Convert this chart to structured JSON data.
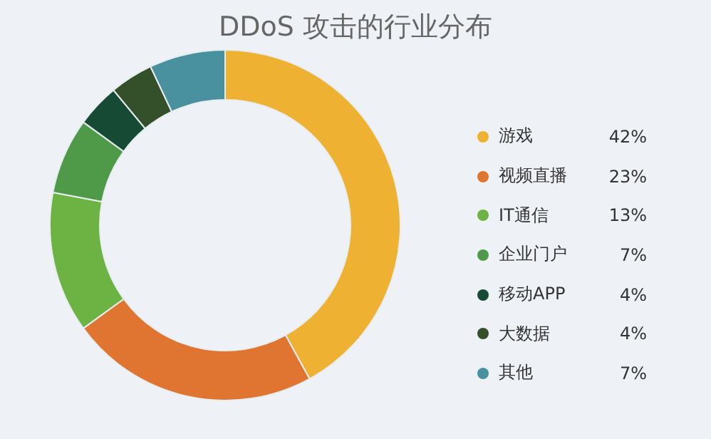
{
  "chart_data": {
    "type": "donut",
    "title": "DDoS 攻击的行业分布",
    "categories": [
      "游戏",
      "视频直播",
      "IT通信",
      "企业门户",
      "移动APP",
      "大数据",
      "其他"
    ],
    "values": [
      42,
      23,
      13,
      7,
      4,
      4,
      7
    ],
    "colors": [
      "#efb132",
      "#e07431",
      "#6db344",
      "#4f9a48",
      "#164a35",
      "#34502a",
      "#4a91a0"
    ],
    "legend": "right",
    "value_labels": [
      "42%",
      "23%",
      "13%",
      "7%",
      "4%",
      "4%",
      "7%"
    ]
  }
}
